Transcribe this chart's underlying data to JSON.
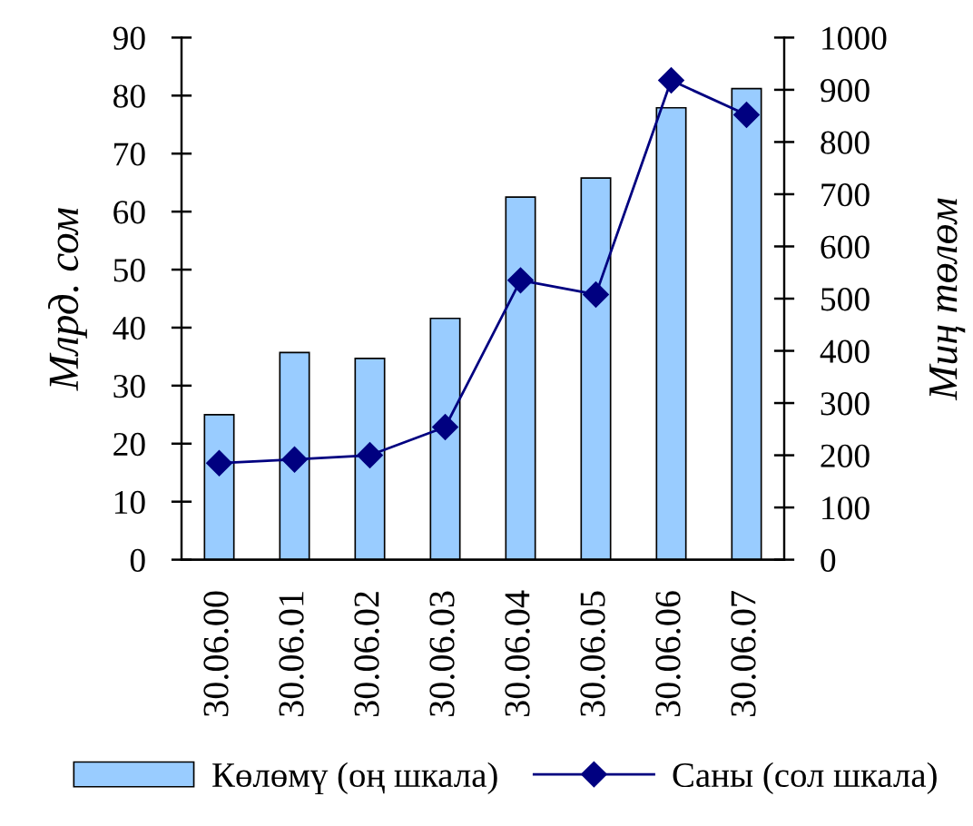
{
  "chart_data": {
    "type": "bar",
    "categories": [
      "30.06.00",
      "30.06.01",
      "30.06.02",
      "30.06.03",
      "30.06.04",
      "30.06.05",
      "30.06.06",
      "30.06.07"
    ],
    "ylabel": "Млрд. сом",
    "y2label": "Миң төлөм",
    "ylim": [
      0,
      90
    ],
    "yticks": [
      0,
      10,
      20,
      30,
      40,
      50,
      60,
      70,
      80,
      90
    ],
    "y2lim": [
      0,
      1000
    ],
    "y2ticks": [
      0,
      100,
      200,
      300,
      400,
      500,
      600,
      700,
      800,
      900,
      1000
    ],
    "legend": "bottom",
    "marker": "diamond",
    "series": [
      {
        "name": "Көлөмү (оң шкала)",
        "color": "#99ccff",
        "values": [
          25,
          35.7,
          34.7,
          41.6,
          62.5,
          65.8,
          77.9,
          81.2
        ]
      },
      {
        "name": "Саны (сол шкала)",
        "type": "line",
        "axis": "y2",
        "color": "#000080",
        "values": [
          185,
          192,
          200,
          254,
          535,
          508,
          918,
          852
        ]
      }
    ]
  }
}
